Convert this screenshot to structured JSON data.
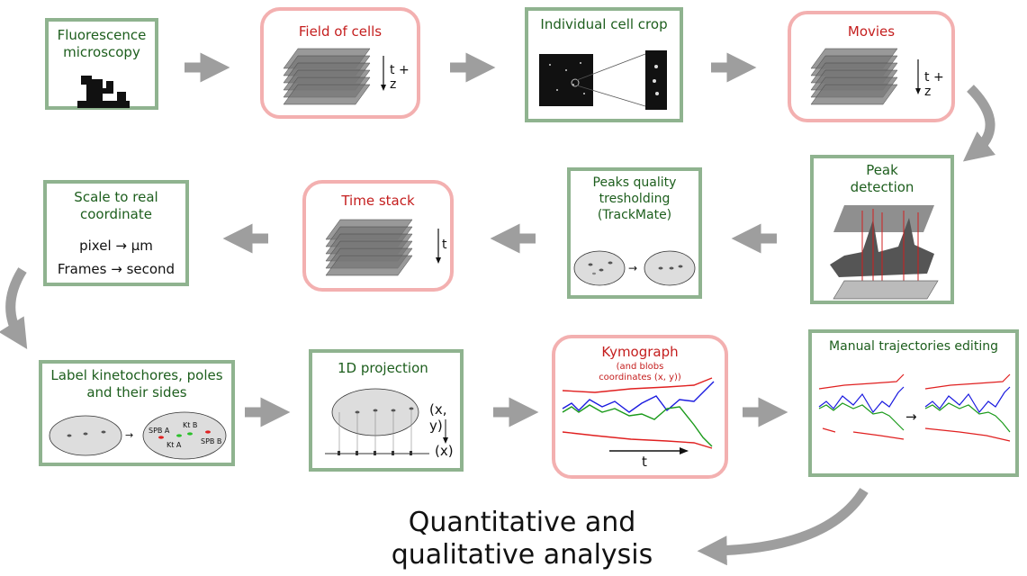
{
  "nodes": {
    "fluorescence": {
      "title": "Fluorescence microscopy"
    },
    "field_of_cells": {
      "title": "Field of cells",
      "axis_label": "t + z"
    },
    "cell_crop": {
      "title": "Individual cell crop"
    },
    "movies": {
      "title": "Movies",
      "axis_label": "t + z"
    },
    "peak_detection": {
      "title": "Peak detection"
    },
    "peaks_quality": {
      "title": "Peaks quality tresholding (TrackMate)"
    },
    "time_stack": {
      "title": "Time stack",
      "axis_label": "t"
    },
    "scale": {
      "title": "Scale to real coordinate",
      "line1": "pixel → µm",
      "line2": "Frames → second"
    },
    "label_kinetochores": {
      "title": "Label kinetochores, poles and their sides",
      "labels": {
        "spb_a": "SPB A",
        "kt_b": "Kt B",
        "kt_a": "Kt A",
        "spb_b": "SPB B"
      }
    },
    "projection_1d": {
      "title": "1D projection",
      "xy": "(x, y)",
      "x": "(x)"
    },
    "kymograph": {
      "title": "Kymograph",
      "subtitle": "(and blobs coordinates (x, y))",
      "axis_label": "t"
    },
    "manual_editing": {
      "title": "Manual trajectories editing",
      "arrow": "→"
    }
  },
  "final_output": {
    "line1": "Quantitative and",
    "line2": "qualitative analysis"
  },
  "colors": {
    "green_border": "#8fb38f",
    "pink_border": "#f3b0b0",
    "green_text": "#1d5e1d",
    "red_text": "#c41e1e",
    "arrow": "#9e9e9e",
    "trace_red": "#e02020",
    "trace_blue": "#1a1adf",
    "trace_green": "#1a9a1a"
  }
}
